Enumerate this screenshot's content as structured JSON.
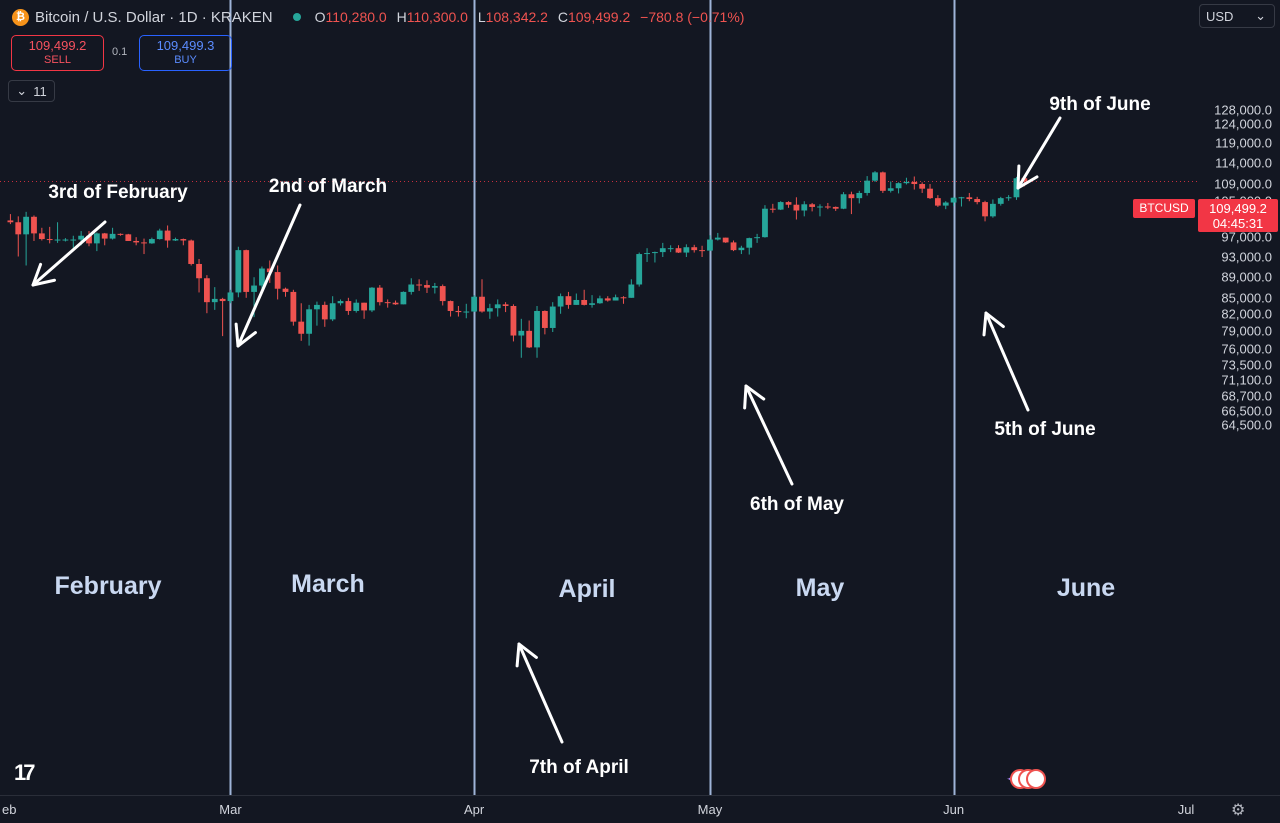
{
  "header": {
    "symbol_title": "Bitcoin / U.S. Dollar · 1D · KRAKEN",
    "btc_icon": "bitcoin-icon",
    "ohlc": [
      {
        "k": "O",
        "v": "110,280.0"
      },
      {
        "k": "H",
        "v": "110,300.0"
      },
      {
        "k": "L",
        "v": "108,342.2"
      },
      {
        "k": "C",
        "v": "109,499.2"
      },
      {
        "k": "",
        "v": "−780.8 (−0.71%)"
      }
    ],
    "status_color": "#26a69a"
  },
  "trade": {
    "sell_price": "109,499.2",
    "sell_label": "SELL",
    "buy_price": "109,499.3",
    "buy_label": "BUY",
    "quantity": "0.1"
  },
  "indicators_toggle": {
    "icon": "chevron-down-icon",
    "count": "11"
  },
  "currency_select": {
    "value": "USD",
    "icon": "chevron-down-icon"
  },
  "price_scale": {
    "ticks": [
      "128,000.0",
      "124,000.0",
      "119,000.0",
      "114,000.0",
      "109,000.0",
      "105,000.0",
      "101,000.0",
      "97,000.0",
      "93,000.0",
      "89,000.0",
      "85,000.0",
      "82,000.0",
      "79,000.0",
      "76,000.0",
      "73,500.0",
      "71,100.0",
      "68,700.0",
      "66,500.0",
      "64,500.0"
    ],
    "log_scale": true,
    "symbol_tag": "BTCUSD",
    "last_price": "109,499.2",
    "countdown": "04:45:31",
    "last_price_color": "#f23645"
  },
  "time_scale": {
    "labels": [
      "eb",
      "Mar",
      "Apr",
      "May",
      "Jun",
      "Jul"
    ]
  },
  "month_labels": [
    "February",
    "March",
    "April",
    "May",
    "June"
  ],
  "annotations": [
    "3rd of February",
    "2nd of March",
    "7th of April",
    "6th of May",
    "5th of June",
    "9th of June"
  ],
  "colors": {
    "up": "#26a69a",
    "down": "#ef5350",
    "background": "#131722",
    "divider": "#9fb4d8"
  },
  "chart_data": {
    "type": "candlestick",
    "title": "Bitcoin / U.S. Dollar · 1D · KRAKEN",
    "x_range": [
      "2025-02-01",
      "2025-06-09"
    ],
    "y_range": [
      64500,
      128000
    ],
    "y_scale": "log",
    "grid": false,
    "month_dividers": [
      "2025-03-01",
      "2025-04-01",
      "2025-05-01",
      "2025-06-01"
    ],
    "candles": [
      {
        "date": "2025-02-01",
        "o": 100600,
        "h": 102000,
        "l": 99800,
        "c": 100200
      },
      {
        "date": "2025-02-02",
        "o": 100200,
        "h": 101500,
        "l": 93000,
        "c": 97600
      },
      {
        "date": "2025-02-03",
        "o": 97600,
        "h": 102500,
        "l": 91200,
        "c": 101400
      },
      {
        "date": "2025-02-04",
        "o": 101400,
        "h": 101700,
        "l": 96200,
        "c": 97800
      },
      {
        "date": "2025-02-05",
        "o": 97800,
        "h": 99000,
        "l": 96300,
        "c": 96600
      },
      {
        "date": "2025-02-06",
        "o": 96600,
        "h": 99200,
        "l": 95700,
        "c": 96500
      },
      {
        "date": "2025-02-07",
        "o": 96500,
        "h": 100200,
        "l": 95800,
        "c": 96500
      },
      {
        "date": "2025-02-08",
        "o": 96500,
        "h": 96800,
        "l": 96100,
        "c": 96500
      },
      {
        "date": "2025-02-09",
        "o": 96500,
        "h": 97300,
        "l": 94800,
        "c": 96500
      },
      {
        "date": "2025-02-10",
        "o": 96500,
        "h": 98300,
        "l": 95300,
        "c": 97300
      },
      {
        "date": "2025-02-11",
        "o": 97300,
        "h": 98300,
        "l": 95100,
        "c": 95700
      },
      {
        "date": "2025-02-12",
        "o": 95700,
        "h": 98000,
        "l": 94100,
        "c": 97800
      },
      {
        "date": "2025-02-13",
        "o": 97800,
        "h": 97900,
        "l": 95300,
        "c": 96700
      },
      {
        "date": "2025-02-14",
        "o": 96700,
        "h": 99000,
        "l": 96500,
        "c": 97700
      },
      {
        "date": "2025-02-15",
        "o": 97700,
        "h": 97800,
        "l": 97300,
        "c": 97600
      },
      {
        "date": "2025-02-16",
        "o": 97600,
        "h": 97700,
        "l": 96200,
        "c": 96200
      },
      {
        "date": "2025-02-17",
        "o": 96200,
        "h": 97000,
        "l": 95300,
        "c": 95900
      },
      {
        "date": "2025-02-18",
        "o": 95900,
        "h": 96700,
        "l": 93500,
        "c": 95700
      },
      {
        "date": "2025-02-19",
        "o": 95700,
        "h": 96900,
        "l": 95600,
        "c": 96600
      },
      {
        "date": "2025-02-20",
        "o": 96600,
        "h": 98800,
        "l": 96500,
        "c": 98400
      },
      {
        "date": "2025-02-21",
        "o": 98400,
        "h": 99500,
        "l": 94800,
        "c": 96300
      },
      {
        "date": "2025-02-22",
        "o": 96300,
        "h": 96900,
        "l": 96200,
        "c": 96600
      },
      {
        "date": "2025-02-23",
        "o": 96600,
        "h": 96700,
        "l": 95300,
        "c": 96300
      },
      {
        "date": "2025-02-24",
        "o": 96300,
        "h": 96500,
        "l": 91200,
        "c": 91500
      },
      {
        "date": "2025-02-25",
        "o": 91500,
        "h": 92500,
        "l": 86000,
        "c": 88700
      },
      {
        "date": "2025-02-26",
        "o": 88700,
        "h": 89300,
        "l": 82200,
        "c": 84200
      },
      {
        "date": "2025-02-27",
        "o": 84200,
        "h": 87000,
        "l": 82800,
        "c": 84800
      },
      {
        "date": "2025-02-28",
        "o": 84800,
        "h": 85000,
        "l": 78200,
        "c": 84400
      },
      {
        "date": "2025-03-01",
        "o": 84400,
        "h": 86500,
        "l": 84000,
        "c": 86000
      },
      {
        "date": "2025-03-02",
        "o": 86000,
        "h": 95000,
        "l": 85100,
        "c": 94300
      },
      {
        "date": "2025-03-03",
        "o": 94300,
        "h": 94400,
        "l": 85000,
        "c": 86100
      },
      {
        "date": "2025-03-04",
        "o": 86100,
        "h": 88900,
        "l": 81500,
        "c": 87300
      },
      {
        "date": "2025-03-05",
        "o": 87300,
        "h": 91000,
        "l": 86400,
        "c": 90600
      },
      {
        "date": "2025-03-06",
        "o": 90600,
        "h": 92200,
        "l": 87800,
        "c": 89900
      },
      {
        "date": "2025-03-07",
        "o": 89900,
        "h": 91200,
        "l": 84700,
        "c": 86700
      },
      {
        "date": "2025-03-08",
        "o": 86700,
        "h": 86900,
        "l": 85200,
        "c": 86100
      },
      {
        "date": "2025-03-09",
        "o": 86100,
        "h": 86500,
        "l": 80000,
        "c": 80700
      },
      {
        "date": "2025-03-10",
        "o": 80700,
        "h": 84000,
        "l": 77400,
        "c": 78600
      },
      {
        "date": "2025-03-11",
        "o": 78600,
        "h": 83700,
        "l": 76600,
        "c": 82900
      },
      {
        "date": "2025-03-12",
        "o": 82900,
        "h": 84300,
        "l": 80000,
        "c": 83700
      },
      {
        "date": "2025-03-13",
        "o": 83700,
        "h": 84300,
        "l": 79800,
        "c": 81100
      },
      {
        "date": "2025-03-14",
        "o": 81100,
        "h": 85300,
        "l": 80800,
        "c": 84000
      },
      {
        "date": "2025-03-15",
        "o": 84000,
        "h": 84700,
        "l": 83600,
        "c": 84400
      },
      {
        "date": "2025-03-16",
        "o": 84400,
        "h": 85000,
        "l": 81900,
        "c": 82600
      },
      {
        "date": "2025-03-17",
        "o": 82600,
        "h": 84700,
        "l": 82300,
        "c": 84100
      },
      {
        "date": "2025-03-18",
        "o": 84100,
        "h": 84100,
        "l": 81200,
        "c": 82700
      },
      {
        "date": "2025-03-19",
        "o": 82700,
        "h": 87000,
        "l": 82400,
        "c": 86900
      },
      {
        "date": "2025-03-20",
        "o": 86900,
        "h": 87400,
        "l": 83600,
        "c": 84200
      },
      {
        "date": "2025-03-21",
        "o": 84200,
        "h": 84700,
        "l": 83200,
        "c": 84100
      },
      {
        "date": "2025-03-22",
        "o": 84100,
        "h": 84500,
        "l": 83700,
        "c": 83800
      },
      {
        "date": "2025-03-23",
        "o": 83800,
        "h": 86200,
        "l": 83800,
        "c": 86100
      },
      {
        "date": "2025-03-24",
        "o": 86100,
        "h": 88700,
        "l": 85600,
        "c": 87500
      },
      {
        "date": "2025-03-25",
        "o": 87500,
        "h": 88500,
        "l": 86300,
        "c": 87400
      },
      {
        "date": "2025-03-26",
        "o": 87400,
        "h": 88300,
        "l": 85900,
        "c": 86900
      },
      {
        "date": "2025-03-27",
        "o": 86900,
        "h": 87800,
        "l": 85800,
        "c": 87200
      },
      {
        "date": "2025-03-28",
        "o": 87200,
        "h": 87500,
        "l": 83600,
        "c": 84400
      },
      {
        "date": "2025-03-29",
        "o": 84400,
        "h": 84500,
        "l": 81600,
        "c": 82600
      },
      {
        "date": "2025-03-30",
        "o": 82600,
        "h": 83500,
        "l": 81600,
        "c": 82400
      },
      {
        "date": "2025-03-31",
        "o": 82400,
        "h": 83900,
        "l": 81300,
        "c": 82500
      },
      {
        "date": "2025-04-01",
        "o": 82500,
        "h": 85500,
        "l": 82400,
        "c": 85200
      },
      {
        "date": "2025-04-02",
        "o": 85200,
        "h": 88500,
        "l": 82300,
        "c": 82500
      },
      {
        "date": "2025-04-03",
        "o": 82500,
        "h": 83900,
        "l": 81200,
        "c": 83100
      },
      {
        "date": "2025-04-04",
        "o": 83100,
        "h": 84700,
        "l": 81600,
        "c": 83800
      },
      {
        "date": "2025-04-05",
        "o": 83800,
        "h": 84200,
        "l": 82400,
        "c": 83500
      },
      {
        "date": "2025-04-06",
        "o": 83500,
        "h": 83800,
        "l": 77300,
        "c": 78300
      },
      {
        "date": "2025-04-07",
        "o": 78300,
        "h": 81200,
        "l": 74600,
        "c": 79100
      },
      {
        "date": "2025-04-08",
        "o": 79100,
        "h": 80900,
        "l": 76200,
        "c": 76300
      },
      {
        "date": "2025-04-09",
        "o": 76300,
        "h": 83500,
        "l": 74600,
        "c": 82600
      },
      {
        "date": "2025-04-10",
        "o": 82600,
        "h": 82700,
        "l": 78500,
        "c": 79600
      },
      {
        "date": "2025-04-11",
        "o": 79600,
        "h": 84200,
        "l": 78900,
        "c": 83400
      },
      {
        "date": "2025-04-12",
        "o": 83400,
        "h": 85800,
        "l": 82100,
        "c": 85300
      },
      {
        "date": "2025-04-13",
        "o": 85300,
        "h": 86100,
        "l": 83000,
        "c": 83700
      },
      {
        "date": "2025-04-14",
        "o": 83700,
        "h": 85800,
        "l": 83700,
        "c": 84600
      },
      {
        "date": "2025-04-15",
        "o": 84600,
        "h": 86500,
        "l": 83600,
        "c": 83700
      },
      {
        "date": "2025-04-16",
        "o": 83700,
        "h": 85500,
        "l": 83200,
        "c": 84000
      },
      {
        "date": "2025-04-17",
        "o": 84000,
        "h": 85400,
        "l": 83900,
        "c": 84900
      },
      {
        "date": "2025-04-18",
        "o": 84900,
        "h": 85300,
        "l": 84300,
        "c": 84500
      },
      {
        "date": "2025-04-19",
        "o": 84500,
        "h": 85600,
        "l": 84500,
        "c": 85100
      },
      {
        "date": "2025-04-20",
        "o": 85100,
        "h": 85300,
        "l": 83900,
        "c": 85000
      },
      {
        "date": "2025-04-21",
        "o": 85000,
        "h": 88500,
        "l": 85000,
        "c": 87500
      },
      {
        "date": "2025-04-22",
        "o": 87500,
        "h": 93800,
        "l": 87100,
        "c": 93500
      },
      {
        "date": "2025-04-23",
        "o": 93500,
        "h": 94700,
        "l": 91900,
        "c": 93700
      },
      {
        "date": "2025-04-24",
        "o": 93700,
        "h": 94000,
        "l": 91800,
        "c": 93900
      },
      {
        "date": "2025-04-25",
        "o": 93900,
        "h": 95800,
        "l": 92900,
        "c": 94700
      },
      {
        "date": "2025-04-26",
        "o": 94700,
        "h": 95300,
        "l": 93900,
        "c": 94700
      },
      {
        "date": "2025-04-27",
        "o": 94700,
        "h": 95300,
        "l": 93700,
        "c": 93800
      },
      {
        "date": "2025-04-28",
        "o": 93800,
        "h": 95500,
        "l": 92900,
        "c": 94900
      },
      {
        "date": "2025-04-29",
        "o": 94900,
        "h": 95400,
        "l": 93800,
        "c": 94300
      },
      {
        "date": "2025-04-30",
        "o": 94300,
        "h": 95200,
        "l": 92900,
        "c": 94200
      },
      {
        "date": "2025-05-01",
        "o": 94200,
        "h": 97400,
        "l": 94100,
        "c": 96500
      },
      {
        "date": "2025-05-02",
        "o": 96500,
        "h": 97900,
        "l": 96300,
        "c": 96900
      },
      {
        "date": "2025-05-03",
        "o": 96900,
        "h": 96900,
        "l": 95800,
        "c": 95900
      },
      {
        "date": "2025-05-04",
        "o": 95900,
        "h": 96300,
        "l": 94100,
        "c": 94300
      },
      {
        "date": "2025-05-05",
        "o": 94300,
        "h": 95200,
        "l": 93500,
        "c": 94800
      },
      {
        "date": "2025-05-06",
        "o": 94800,
        "h": 96900,
        "l": 93400,
        "c": 96800
      },
      {
        "date": "2025-05-07",
        "o": 96800,
        "h": 97700,
        "l": 95800,
        "c": 97000
      },
      {
        "date": "2025-05-08",
        "o": 97000,
        "h": 104000,
        "l": 96900,
        "c": 103200
      },
      {
        "date": "2025-05-09",
        "o": 103200,
        "h": 104300,
        "l": 102300,
        "c": 103000
      },
      {
        "date": "2025-05-10",
        "o": 103000,
        "h": 104900,
        "l": 102900,
        "c": 104700
      },
      {
        "date": "2025-05-11",
        "o": 104700,
        "h": 104900,
        "l": 103400,
        "c": 104100
      },
      {
        "date": "2025-05-12",
        "o": 104100,
        "h": 105800,
        "l": 100800,
        "c": 102800
      },
      {
        "date": "2025-05-13",
        "o": 102800,
        "h": 104900,
        "l": 101500,
        "c": 104200
      },
      {
        "date": "2025-05-14",
        "o": 104200,
        "h": 104500,
        "l": 102600,
        "c": 103600
      },
      {
        "date": "2025-05-15",
        "o": 103600,
        "h": 104200,
        "l": 101500,
        "c": 103700
      },
      {
        "date": "2025-05-16",
        "o": 103700,
        "h": 104500,
        "l": 103100,
        "c": 103600
      },
      {
        "date": "2025-05-17",
        "o": 103600,
        "h": 103700,
        "l": 102700,
        "c": 103200
      },
      {
        "date": "2025-05-18",
        "o": 103200,
        "h": 107000,
        "l": 103100,
        "c": 106500
      },
      {
        "date": "2025-05-19",
        "o": 106500,
        "h": 107100,
        "l": 102000,
        "c": 105600
      },
      {
        "date": "2025-05-20",
        "o": 105600,
        "h": 107300,
        "l": 104400,
        "c": 106800
      },
      {
        "date": "2025-05-21",
        "o": 106800,
        "h": 110800,
        "l": 106200,
        "c": 109700
      },
      {
        "date": "2025-05-22",
        "o": 109700,
        "h": 112000,
        "l": 109400,
        "c": 111700
      },
      {
        "date": "2025-05-23",
        "o": 111700,
        "h": 111900,
        "l": 106800,
        "c": 107300
      },
      {
        "date": "2025-05-24",
        "o": 107300,
        "h": 109500,
        "l": 106900,
        "c": 107900
      },
      {
        "date": "2025-05-25",
        "o": 107900,
        "h": 109300,
        "l": 106700,
        "c": 109100
      },
      {
        "date": "2025-05-26",
        "o": 109100,
        "h": 110400,
        "l": 108800,
        "c": 109400
      },
      {
        "date": "2025-05-27",
        "o": 109400,
        "h": 110700,
        "l": 107600,
        "c": 108900
      },
      {
        "date": "2025-05-28",
        "o": 108900,
        "h": 109300,
        "l": 106800,
        "c": 107800
      },
      {
        "date": "2025-05-29",
        "o": 107800,
        "h": 108900,
        "l": 105400,
        "c": 105600
      },
      {
        "date": "2025-05-30",
        "o": 105600,
        "h": 106300,
        "l": 103600,
        "c": 103900
      },
      {
        "date": "2025-05-31",
        "o": 103900,
        "h": 104900,
        "l": 103100,
        "c": 104600
      },
      {
        "date": "2025-06-01",
        "o": 104600,
        "h": 105900,
        "l": 103800,
        "c": 105700
      },
      {
        "date": "2025-06-02",
        "o": 105700,
        "h": 105900,
        "l": 103700,
        "c": 105800
      },
      {
        "date": "2025-06-03",
        "o": 105800,
        "h": 106800,
        "l": 104900,
        "c": 105400
      },
      {
        "date": "2025-06-04",
        "o": 105400,
        "h": 105900,
        "l": 104200,
        "c": 104700
      },
      {
        "date": "2025-06-05",
        "o": 104700,
        "h": 105000,
        "l": 100400,
        "c": 101500
      },
      {
        "date": "2025-06-06",
        "o": 101500,
        "h": 105300,
        "l": 101200,
        "c": 104300
      },
      {
        "date": "2025-06-07",
        "o": 104300,
        "h": 105900,
        "l": 103900,
        "c": 105600
      },
      {
        "date": "2025-06-08",
        "o": 105600,
        "h": 106300,
        "l": 105000,
        "c": 105800
      },
      {
        "date": "2025-06-09",
        "o": 105800,
        "h": 110600,
        "l": 105200,
        "c": 110280
      },
      {
        "date": "2025-06-10",
        "o": 110280,
        "h": 110300,
        "l": 108342.2,
        "c": 109499.2
      }
    ]
  }
}
